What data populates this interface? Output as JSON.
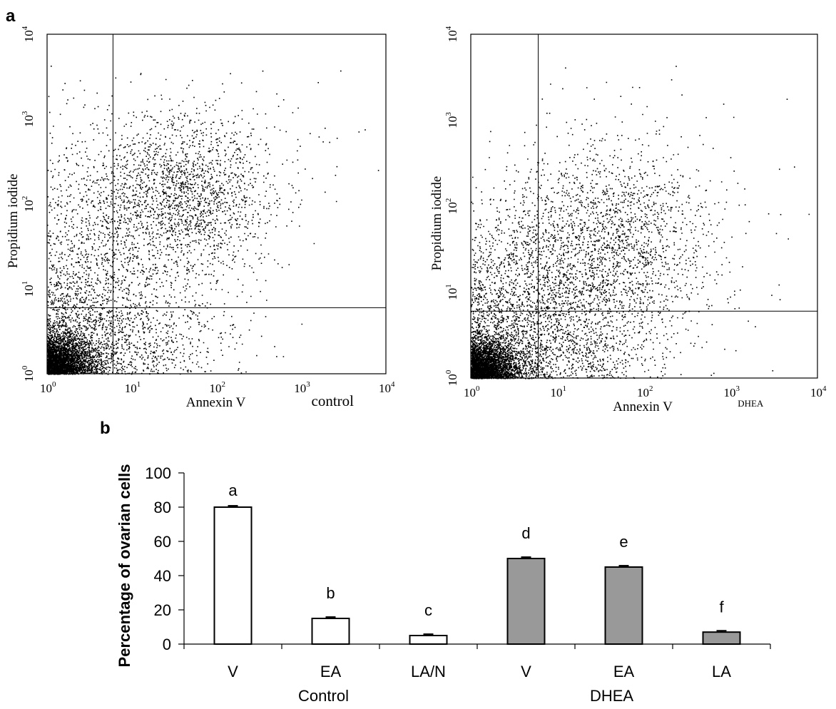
{
  "panel_labels": {
    "a": "a",
    "b": "b"
  },
  "flow_plots": [
    {
      "tick_labels": {
        "x": [
          "10",
          "10",
          "10",
          "10",
          "10"
        ],
        "x_exp": [
          "0",
          "1",
          "2",
          "3",
          "4"
        ],
        "y": [
          "10",
          "10",
          "10",
          "10",
          "10"
        ],
        "y_exp": [
          "0",
          "1",
          "2",
          "3",
          "4"
        ]
      },
      "xlabel": "Annexin V",
      "ylabel": "Propidium iodide",
      "corner_label": "control",
      "quadrant_gate": {
        "x": 6,
        "y": 6
      }
    },
    {
      "tick_labels": {
        "x": [
          "10",
          "10",
          "10",
          "10",
          "10"
        ],
        "x_exp": [
          "0",
          "1",
          "2",
          "3",
          "4"
        ],
        "y": [
          "10",
          "10",
          "10",
          "10",
          "10"
        ],
        "y_exp": [
          "0",
          "1",
          "2",
          "3",
          "4"
        ]
      },
      "xlabel": "Annexin V",
      "ylabel": "Propidium iodide",
      "corner_label": "DHEA",
      "quadrant_gate": {
        "x": 6,
        "y": 6
      }
    }
  ],
  "chart_data": {
    "type": "bar",
    "categories": [
      "V",
      "EA",
      "LA/N",
      "V",
      "EA",
      "LA"
    ],
    "groups": [
      {
        "label": "Control",
        "categories": [
          "V",
          "EA",
          "LA/N"
        ],
        "color": "#ffffff"
      },
      {
        "label": "DHEA",
        "categories": [
          "V",
          "EA",
          "LA"
        ],
        "color": "#999999"
      }
    ],
    "values": [
      80,
      15,
      5,
      50,
      45,
      7
    ],
    "errors": [
      0.8,
      0.8,
      0.8,
      0.8,
      0.8,
      0.8
    ],
    "significance_letters": [
      "a",
      "b",
      "c",
      "d",
      "e",
      "f"
    ],
    "ylabel": "Percentage of ovarian cells",
    "ylim": [
      0,
      100
    ],
    "yticks": [
      "0",
      "20",
      "40",
      "60",
      "80",
      "100"
    ],
    "grid": false
  }
}
